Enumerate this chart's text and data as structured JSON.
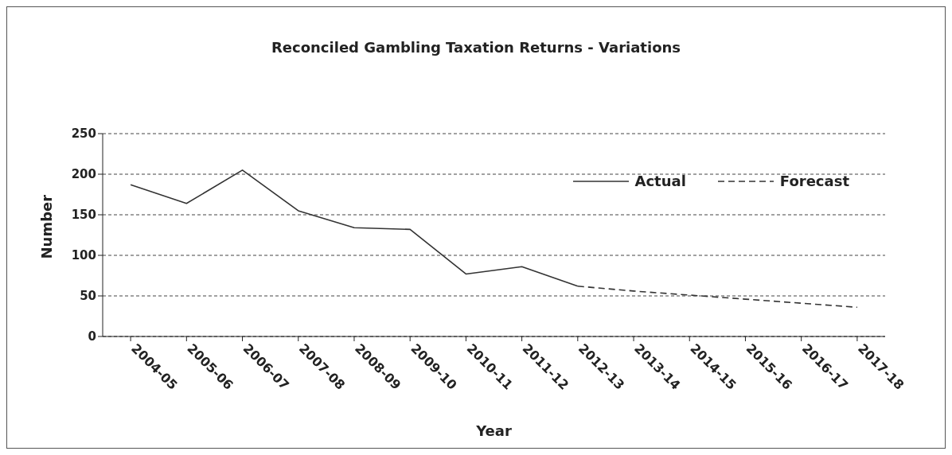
{
  "chart_data": {
    "type": "line",
    "title": "Reconciled Gambling Taxation Returns - Variations",
    "xlabel": "Year",
    "ylabel": "Number",
    "categories": [
      "2004-05",
      "2005-06",
      "2006-07",
      "2007-08",
      "2008-09",
      "2009-10",
      "2010-11",
      "2011-12",
      "2012-13",
      "2013-14",
      "2014-15",
      "2015-16",
      "2016-17",
      "2017-18"
    ],
    "series": [
      {
        "name": "Actual",
        "color": "#333333",
        "line_style": "solid",
        "values": [
          187,
          164,
          205,
          155,
          134,
          132,
          77,
          86,
          62,
          null,
          null,
          null,
          null,
          null
        ]
      },
      {
        "name": "Forecast",
        "color": "#333333",
        "line_style": "dashed",
        "values": [
          null,
          null,
          null,
          null,
          null,
          null,
          null,
          null,
          62,
          56,
          51,
          46,
          41,
          36
        ]
      }
    ],
    "ylim": [
      0,
      250
    ],
    "yticks": [
      0,
      50,
      100,
      150,
      200,
      250
    ],
    "grid": "y",
    "legend": "top right",
    "marker": "none"
  }
}
